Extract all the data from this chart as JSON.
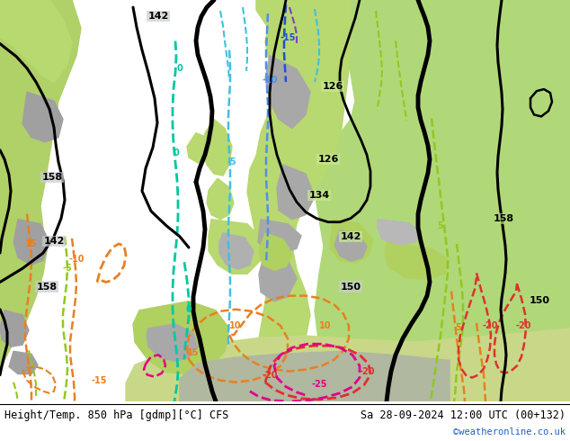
{
  "title_left": "Height/Temp. 850 hPa [gdmp][°C] CFS",
  "title_right": "Sa 28-09-2024 12:00 UTC (00+132)",
  "watermark": "©weatheronline.co.uk",
  "figsize": [
    6.34,
    4.9
  ],
  "dpi": 100,
  "ocean_color": "#c8cdd0",
  "land_green_bright": "#b0d870",
  "land_green_light": "#c8e890",
  "land_gray": "#aaaaaa",
  "land_white_gray": "#d0d0d0"
}
